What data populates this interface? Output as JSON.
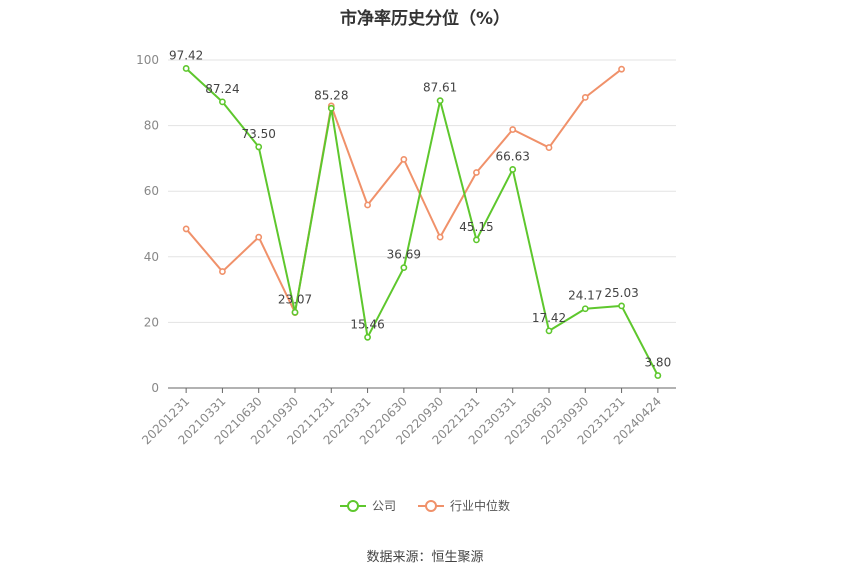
{
  "chart_data": {
    "type": "line",
    "title": "市净率历史分位（%）",
    "xlabel": "",
    "ylabel": "",
    "categories": [
      "20201231",
      "20210331",
      "20210630",
      "20210930",
      "20211231",
      "20220331",
      "20220630",
      "20220930",
      "20221231",
      "20230331",
      "20230630",
      "20230930",
      "20231231",
      "20240424"
    ],
    "ylim": [
      0,
      100
    ],
    "yticks": [
      0,
      20,
      40,
      60,
      80,
      100
    ],
    "grid": true,
    "legend_position": "bottom",
    "series": [
      {
        "name": "公司",
        "color": "#5ec72d",
        "show_labels": true,
        "values": [
          97.42,
          87.24,
          73.5,
          23.07,
          85.28,
          15.46,
          36.69,
          87.61,
          45.15,
          66.63,
          17.42,
          24.17,
          25.03,
          3.8
        ],
        "labels": [
          "97.42",
          "87.24",
          "73.50",
          "23.07",
          "85.28",
          "15.46",
          "36.69",
          "87.61",
          "45.15",
          "66.63",
          "17.42",
          "24.17",
          "25.03",
          "3.80"
        ]
      },
      {
        "name": "行业中位数",
        "color": "#f0916a",
        "show_labels": false,
        "values": [
          48.5,
          35.5,
          46,
          23,
          86,
          55.8,
          69.7,
          46,
          65.7,
          78.8,
          73.3,
          88.6,
          97.2,
          null
        ]
      }
    ]
  },
  "source": "数据来源：恒生聚源"
}
